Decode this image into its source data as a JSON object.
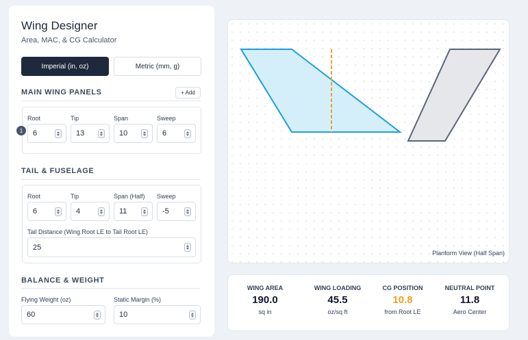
{
  "header": {
    "title": "Wing Designer",
    "subtitle": "Area, MAC, & CG Calculator"
  },
  "units": [
    "Imperial (in, oz)",
    "Metric (mm, g)"
  ],
  "main_wing": {
    "title": "MAIN WING PANELS",
    "add_button": "+ Add",
    "panels": [
      {
        "index": 1,
        "fields": [
          {
            "label": "Root",
            "value": 6
          },
          {
            "label": "Tip",
            "value": 13
          },
          {
            "label": "Span",
            "value": 10
          },
          {
            "label": "Sweep",
            "value": 6
          }
        ]
      }
    ]
  },
  "tail": {
    "title": "TAIL & FUSELAGE",
    "fields": [
      {
        "label": "Root",
        "value": 6
      },
      {
        "label": "Tip",
        "value": 4
      },
      {
        "label": "Span (Half)",
        "value": 11
      },
      {
        "label": "Sweep",
        "value": -5
      }
    ],
    "tail_distance": {
      "label": "Tail Distance (Wing Root LE to Tail Root LE)",
      "value": 25
    }
  },
  "balance": {
    "title": "BALANCE & WEIGHT",
    "fields": [
      {
        "label": "Flying Weight (oz)",
        "value": 60
      },
      {
        "label": "Static Margin (%)",
        "value": 10
      }
    ]
  },
  "plot": {
    "caption": "Planform View (Half Span)"
  },
  "stats": [
    {
      "label": "WING AREA",
      "value": "190.0",
      "unit": "sq in"
    },
    {
      "label": "WING LOADING",
      "value": "45.5",
      "unit": "oz/sq ft"
    },
    {
      "label": "CG POSITION",
      "value": "10.8",
      "unit": "from Root LE"
    },
    {
      "label": "NEUTRAL POINT",
      "value": "11.8",
      "unit": "Aero Center"
    }
  ]
}
